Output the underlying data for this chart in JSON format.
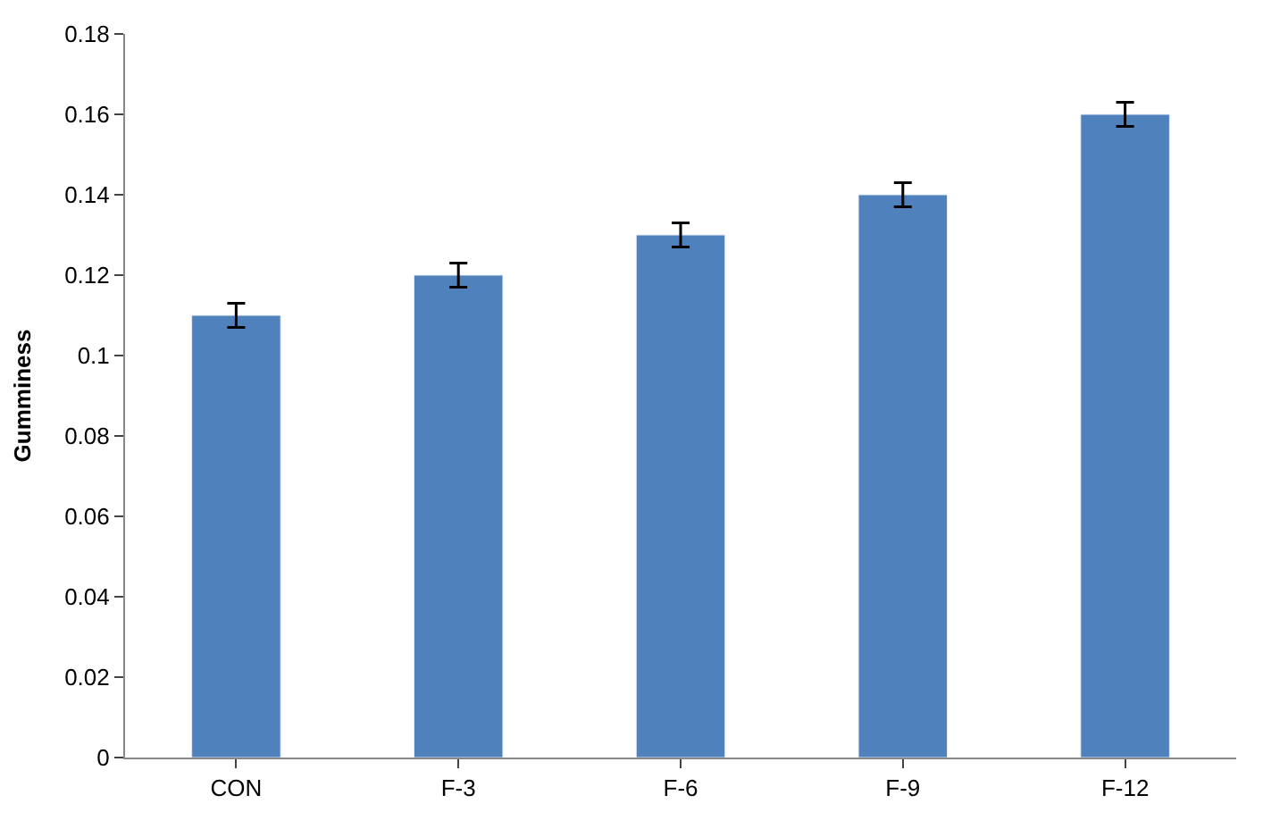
{
  "chart_data": {
    "type": "bar",
    "ylabel": "Gumminess",
    "categories": [
      "CON",
      "F-3",
      "F-6",
      "F-9",
      "F-12"
    ],
    "values": [
      0.11,
      0.12,
      0.13,
      0.14,
      0.16
    ],
    "errors": [
      0.003,
      0.003,
      0.003,
      0.003,
      0.003
    ],
    "color": "#4f81bd",
    "ylim": [
      0,
      0.18
    ],
    "yticks": [
      0,
      0.02,
      0.04,
      0.06,
      0.08,
      0.1,
      0.12,
      0.14,
      0.16,
      0.18
    ]
  }
}
